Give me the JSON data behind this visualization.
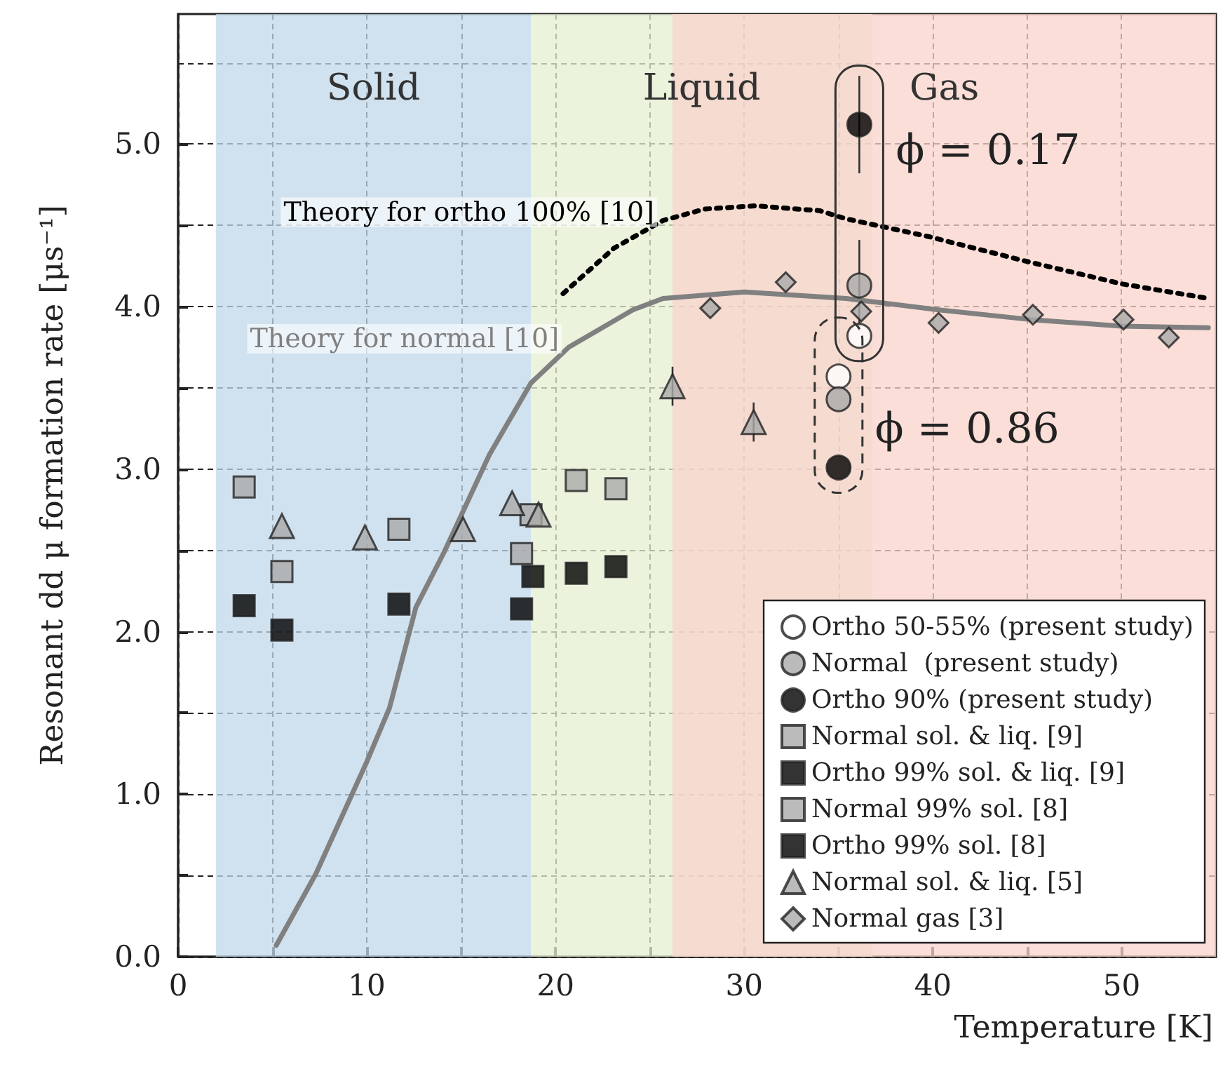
{
  "chart_data": {
    "type": "scatter",
    "xlabel": "Temperature [K]",
    "ylabel": "Resonant dd μ formation rate [μs⁻¹]",
    "xlim": [
      0,
      55
    ],
    "ylim": [
      0,
      5.8
    ],
    "xticks": [
      0,
      {
        "value": 5,
        "label": null
      },
      10,
      {
        "value": 15,
        "label": null
      },
      20,
      {
        "value": 25,
        "label": null
      },
      30,
      {
        "value": 35,
        "label": null
      },
      40,
      {
        "value": 45,
        "label": null
      },
      50
    ],
    "yticks": [
      {
        "value": 0,
        "label": "0.0"
      },
      {
        "value": 0.5,
        "label": null
      },
      {
        "value": 1,
        "label": "1.0"
      },
      {
        "value": 1.5,
        "label": null
      },
      {
        "value": 2,
        "label": "2.0"
      },
      {
        "value": 2.5,
        "label": null
      },
      {
        "value": 3,
        "label": "3.0"
      },
      {
        "value": 3.5,
        "label": null
      },
      {
        "value": 4,
        "label": "4.0"
      },
      {
        "value": 4.5,
        "label": null
      },
      {
        "value": 5,
        "label": "5.0"
      },
      {
        "value": 5.5,
        "label": null
      }
    ],
    "grid": true,
    "legend": "bottom right",
    "line_style": "solid",
    "series": [
      {
        "name": "Ortho 50-55% (present study)",
        "color": "#ffffff",
        "marker": "circle",
        "x": [
          35.0,
          36.1
        ],
        "values": [
          3.57,
          3.82
        ]
      },
      {
        "name": "Normal  (present study)",
        "color": "#aaaaaa",
        "marker": "circle",
        "x": [
          35.0,
          36.1
        ],
        "values": [
          3.43,
          4.13
        ],
        "errors": [
          null,
          0.28
        ]
      },
      {
        "name": "Ortho 90% (present study)",
        "color": "#000000",
        "marker": "circle",
        "x": [
          35.0,
          36.1
        ],
        "values": [
          3.01,
          5.12
        ],
        "errors": [
          null,
          0.3
        ]
      },
      {
        "name": "Normal sol. & liq. [9]",
        "color": "#aaaaaa",
        "marker": "square",
        "x": [
          5.5,
          11.7,
          18.2,
          18.7,
          21.1,
          23.2
        ],
        "values": [
          2.37,
          2.63,
          2.48,
          2.72,
          2.93,
          2.88
        ]
      },
      {
        "name": "Ortho 99% sol. & liq. [9]",
        "color": "#000000",
        "marker": "square",
        "x": [
          5.5,
          11.7,
          18.2,
          18.8,
          21.1,
          23.2
        ],
        "values": [
          2.01,
          2.17,
          2.14,
          2.34,
          2.36,
          2.4
        ]
      },
      {
        "name": "Normal 99% sol. [8]",
        "color": "#aaaaaa",
        "marker": "square",
        "x": [
          3.5
        ],
        "values": [
          2.89
        ]
      },
      {
        "name": "Ortho 99% sol. [8]",
        "color": "#000000",
        "marker": "square",
        "x": [
          3.5
        ],
        "values": [
          2.16
        ]
      },
      {
        "name": "Normal sol. & liq. [5]",
        "color": "#aaaaaa",
        "marker": "triangle",
        "x": [
          5.5,
          9.9,
          15.1,
          17.7,
          19.1,
          26.2,
          30.5
        ],
        "values": [
          2.65,
          2.58,
          2.63,
          2.79,
          2.72,
          3.51,
          3.29
        ],
        "errors": [
          null,
          null,
          null,
          null,
          null,
          0.12,
          0.12
        ]
      },
      {
        "name": "Normal gas [3]",
        "color": "#aaaaaa",
        "marker": "diamond",
        "x": [
          28.2,
          32.2,
          36.2,
          40.3,
          45.3,
          50.1,
          52.5
        ],
        "values": [
          3.99,
          4.15,
          3.97,
          3.9,
          3.95,
          3.92,
          3.81
        ]
      },
      {
        "name": "Theory for ortho 100% [10]",
        "type": "line",
        "color": "#000000",
        "marker": "none",
        "line_style": "dotted",
        "x": [
          20.4,
          23.1,
          25.7,
          27.9,
          30.6,
          34.0,
          35.4,
          39.8,
          44.9,
          50.0,
          54.6
        ],
        "values": [
          4.08,
          4.36,
          4.53,
          4.6,
          4.62,
          4.59,
          4.54,
          4.43,
          4.28,
          4.14,
          4.05
        ]
      },
      {
        "name": "Theory for normal [10]",
        "type": "line",
        "color": "#808080",
        "marker": "none",
        "x": [
          5.2,
          7.3,
          10.0,
          11.2,
          12.6,
          14.1,
          16.5,
          18.7,
          20.7,
          24.1,
          25.7,
          30.0,
          35.4,
          40.3,
          45.2,
          50.0,
          54.6
        ],
        "values": [
          0.07,
          0.51,
          1.2,
          1.53,
          2.15,
          2.49,
          3.09,
          3.53,
          3.75,
          3.98,
          4.05,
          4.09,
          4.05,
          3.98,
          3.92,
          3.88,
          3.87
        ]
      }
    ],
    "bands": [
      {
        "axis": "x",
        "from": 2.0,
        "to": 18.7,
        "label": "Solid",
        "color": "#c0d8ea"
      },
      {
        "axis": "x",
        "from": 18.7,
        "to": 36.8,
        "label": "Liquid",
        "color": "#e4efd2"
      },
      {
        "axis": "x",
        "from": 26.2,
        "to": 55,
        "label": "Gas",
        "color": "#f9d3cb"
      }
    ],
    "annotations": [
      {
        "text": "ϕ = 0.17",
        "x": 36.1,
        "y": 5.12
      },
      {
        "text": "ϕ = 0.86",
        "x": 35.0,
        "y": 3.01
      }
    ]
  }
}
